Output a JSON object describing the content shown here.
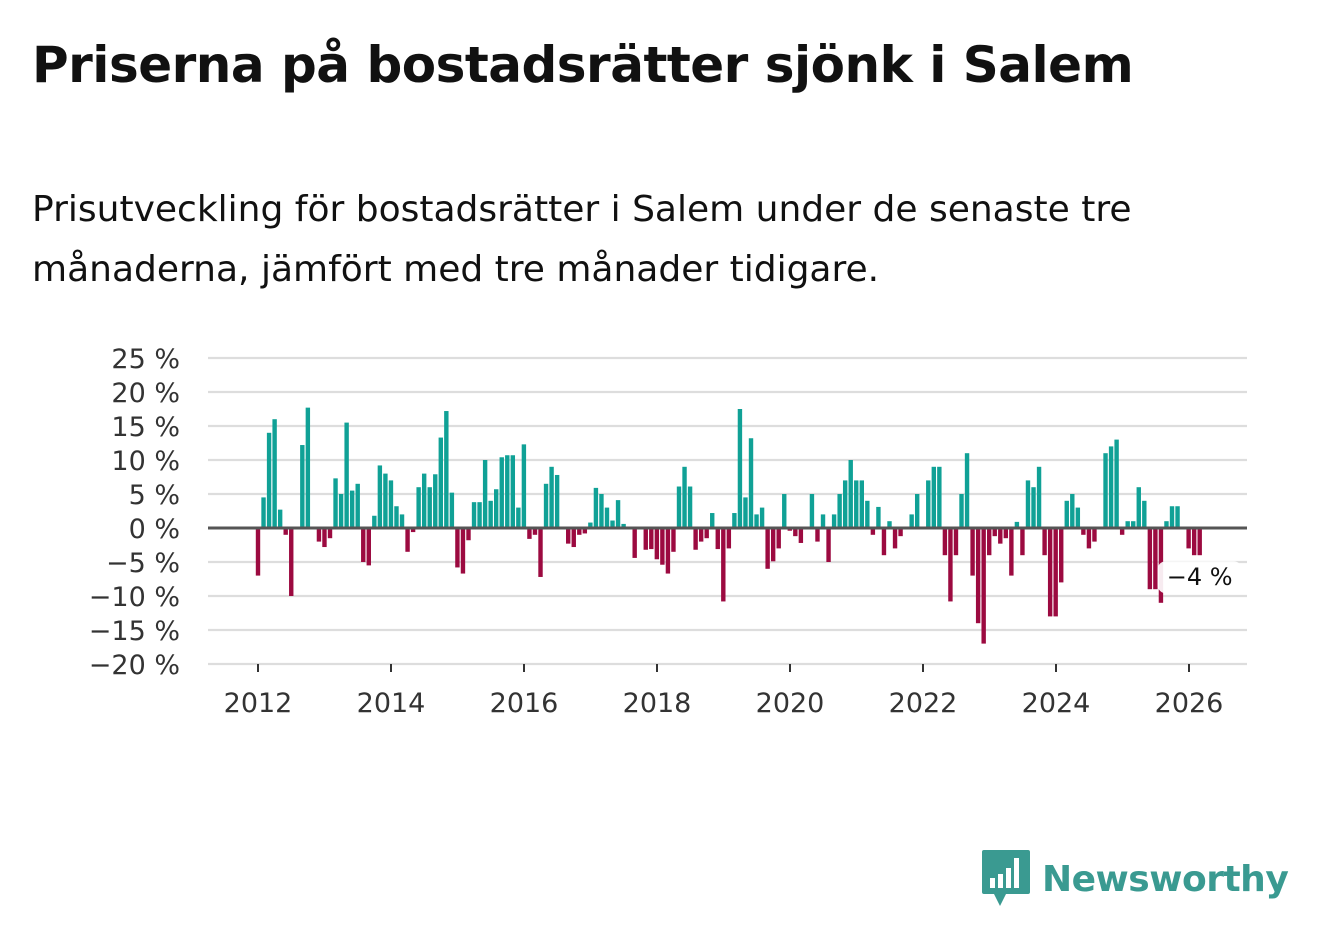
{
  "header": {
    "title": "Priserna på bostadsrätter sjönk i Salem",
    "subtitle": "Prisutveckling för bostadsrätter i Salem under de senaste tre månaderna, jämfört med tre månader tidigare."
  },
  "brand": {
    "name": "Newsworthy",
    "icon": "newsworthy-logo-icon"
  },
  "colors": {
    "positive": "#10a196",
    "negative": "#9c0a40",
    "gridline": "#dddddd",
    "zero_line": "#555555",
    "brand": "#3a9a91"
  },
  "chart_data": {
    "type": "bar",
    "title": "Priserna på bostadsrätter sjönk i Salem",
    "subtitle": "Prisutveckling för bostadsrätter i Salem under de senaste tre månaderna, jämfört med tre månader tidigare.",
    "xlabel": "",
    "ylabel": "",
    "ylim": [
      -20,
      25
    ],
    "y_ticks": [
      25,
      20,
      15,
      10,
      5,
      0,
      -5,
      -10,
      -15,
      -20
    ],
    "y_tick_labels": [
      "25 %",
      "20 %",
      "15 %",
      "10 %",
      "5 %",
      "0 %",
      "−5 %",
      "−10 %",
      "−15 %",
      "−20 %"
    ],
    "x_ticks": [
      "2012",
      "2014",
      "2016",
      "2018",
      "2020",
      "2022",
      "2024",
      "2026"
    ],
    "x_start": 2012.0,
    "x_step_years": 0.0833,
    "grid": true,
    "annotation": {
      "label": "−4 %",
      "value": -4
    },
    "values": [
      -7,
      4.5,
      14,
      16,
      2.7,
      -1,
      -10,
      0,
      12.2,
      17.7,
      0,
      -2,
      -2.8,
      -1.5,
      7.3,
      5,
      15.5,
      5.5,
      6.5,
      -5,
      -5.5,
      1.8,
      9.2,
      8,
      7,
      3.2,
      2,
      -3.5,
      -0.6,
      6,
      8,
      6,
      7.9,
      13.3,
      17.2,
      5.2,
      -5.8,
      -6.7,
      -1.8,
      3.8,
      3.8,
      10,
      4,
      5.7,
      10.4,
      10.7,
      10.7,
      3,
      12.3,
      -1.6,
      -1,
      -7.2,
      6.5,
      9,
      7.8,
      -0.1,
      -2.3,
      -2.8,
      -1,
      -0.8,
      0.8,
      5.9,
      5,
      3,
      1.1,
      4.1,
      0.6,
      0.1,
      -4.4,
      -0.2,
      -3.2,
      -3.1,
      -4.6,
      -5.4,
      -6.7,
      -3.5,
      6.1,
      9,
      6.1,
      -3.2,
      -2,
      -1.5,
      2.2,
      -3.1,
      -10.8,
      -3,
      2.2,
      17.5,
      4.5,
      13.2,
      2,
      3,
      -6,
      -4.9,
      -3,
      5,
      -0.4,
      -1.2,
      -2.2,
      -0.1,
      5,
      -2,
      2,
      -5,
      2,
      5,
      7,
      10,
      7,
      7,
      4,
      -1,
      3.1,
      -4,
      1,
      -3,
      -1.2,
      -0.1,
      2,
      5,
      0.1,
      7,
      9,
      9,
      -4,
      -10.8,
      -4,
      5,
      11,
      -7,
      -14,
      -17,
      -4,
      -1.2,
      -2.3,
      -1.5,
      -7,
      0.9,
      -4,
      7,
      6,
      9,
      -4,
      -13,
      -13,
      -8,
      4,
      5,
      3,
      -1,
      -3,
      -2,
      0.1,
      11,
      12,
      13,
      -1,
      1,
      1,
      6,
      4,
      -9,
      -9,
      -11,
      1,
      3.2,
      3.2,
      0,
      -3,
      -4,
      -4
    ]
  }
}
